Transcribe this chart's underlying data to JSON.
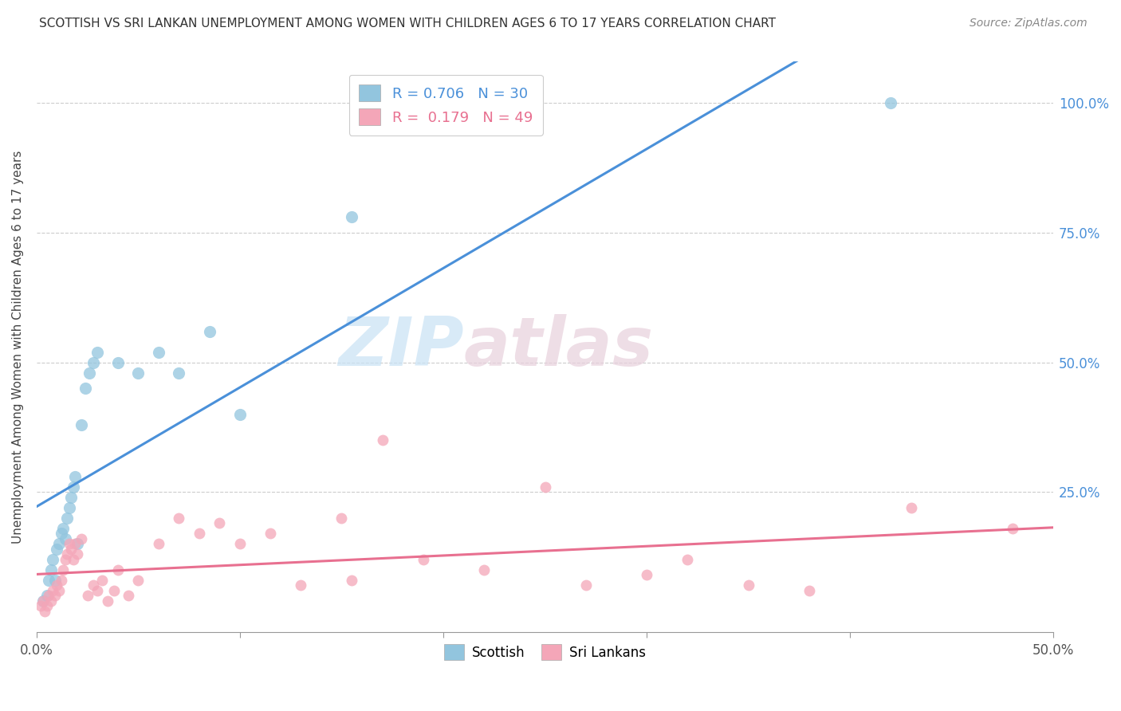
{
  "title": "SCOTTISH VS SRI LANKAN UNEMPLOYMENT AMONG WOMEN WITH CHILDREN AGES 6 TO 17 YEARS CORRELATION CHART",
  "source": "Source: ZipAtlas.com",
  "ylabel": "Unemployment Among Women with Children Ages 6 to 17 years",
  "xlim": [
    0.0,
    0.5
  ],
  "ylim": [
    -0.02,
    1.08
  ],
  "xtick_vals": [
    0.0,
    0.1,
    0.2,
    0.3,
    0.4,
    0.5
  ],
  "ytick_vals": [
    0.25,
    0.5,
    0.75,
    1.0
  ],
  "ytick_labels": [
    "25.0%",
    "50.0%",
    "75.0%",
    "100.0%"
  ],
  "watermark_zip": "ZIP",
  "watermark_atlas": "atlas",
  "scottish_color": "#92C5DE",
  "srilanka_color": "#F4A6B8",
  "scottish_line_color": "#4A90D9",
  "srilanka_line_color": "#E87090",
  "legend_scottish_R": "0.706",
  "legend_scottish_N": "30",
  "legend_srilanka_R": "0.179",
  "legend_srilanka_N": "49",
  "scottish_x": [
    0.003,
    0.005,
    0.006,
    0.007,
    0.008,
    0.009,
    0.01,
    0.011,
    0.012,
    0.013,
    0.014,
    0.015,
    0.016,
    0.017,
    0.018,
    0.019,
    0.02,
    0.022,
    0.024,
    0.026,
    0.028,
    0.03,
    0.04,
    0.05,
    0.06,
    0.07,
    0.085,
    0.1,
    0.155,
    0.42
  ],
  "scottish_y": [
    0.04,
    0.05,
    0.08,
    0.1,
    0.12,
    0.08,
    0.14,
    0.15,
    0.17,
    0.18,
    0.16,
    0.2,
    0.22,
    0.24,
    0.26,
    0.28,
    0.15,
    0.38,
    0.45,
    0.48,
    0.5,
    0.52,
    0.5,
    0.48,
    0.52,
    0.48,
    0.56,
    0.4,
    0.78,
    1.0
  ],
  "srilanka_x": [
    0.002,
    0.003,
    0.004,
    0.005,
    0.006,
    0.007,
    0.008,
    0.009,
    0.01,
    0.011,
    0.012,
    0.013,
    0.014,
    0.015,
    0.016,
    0.017,
    0.018,
    0.019,
    0.02,
    0.022,
    0.025,
    0.028,
    0.03,
    0.032,
    0.035,
    0.038,
    0.04,
    0.045,
    0.05,
    0.06,
    0.07,
    0.08,
    0.09,
    0.1,
    0.115,
    0.13,
    0.15,
    0.155,
    0.17,
    0.19,
    0.22,
    0.25,
    0.27,
    0.3,
    0.32,
    0.35,
    0.38,
    0.43,
    0.48
  ],
  "srilanka_y": [
    0.03,
    0.04,
    0.02,
    0.03,
    0.05,
    0.04,
    0.06,
    0.05,
    0.07,
    0.06,
    0.08,
    0.1,
    0.12,
    0.13,
    0.15,
    0.14,
    0.12,
    0.15,
    0.13,
    0.16,
    0.05,
    0.07,
    0.06,
    0.08,
    0.04,
    0.06,
    0.1,
    0.05,
    0.08,
    0.15,
    0.2,
    0.17,
    0.19,
    0.15,
    0.17,
    0.07,
    0.2,
    0.08,
    0.35,
    0.12,
    0.1,
    0.26,
    0.07,
    0.09,
    0.12,
    0.07,
    0.06,
    0.22,
    0.18
  ]
}
